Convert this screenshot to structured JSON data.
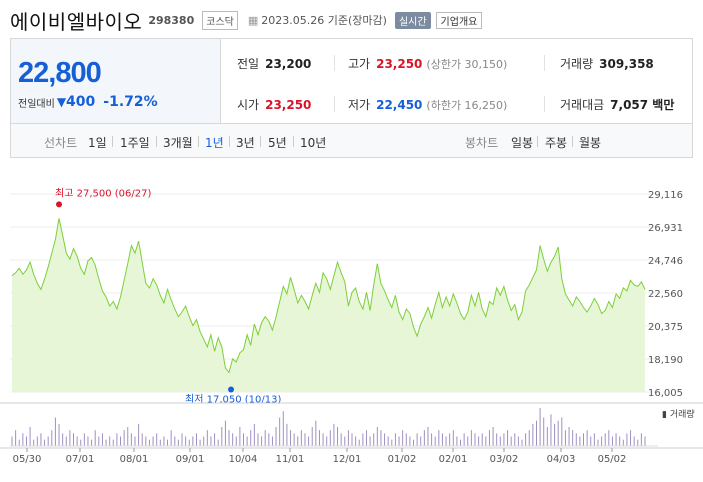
{
  "header": {
    "title": "에이비엘바이오",
    "code": "298380",
    "market": "코스닥",
    "date": "2023.05.26 기준(장마감)",
    "realtime": "실시간",
    "company_btn": "기업개요"
  },
  "price": {
    "current": "22,800",
    "prev_label": "전일대비",
    "change": "400",
    "change_pct": "-1.72%"
  },
  "stats": {
    "prev_close_label": "전일",
    "prev_close": "23,200",
    "high_label": "고가",
    "high": "23,250",
    "upper_limit": "(상한가 30,150)",
    "volume_label": "거래량",
    "volume": "309,358",
    "open_label": "시가",
    "open": "23,250",
    "low_label": "저가",
    "low": "22,450",
    "lower_limit": "(하한가 16,250)",
    "amount_label": "거래대금",
    "amount": "7,057 백만"
  },
  "tabs": {
    "line_label": "선차트",
    "line_tabs": [
      "1일",
      "1주일",
      "3개월",
      "1년",
      "3년",
      "5년",
      "10년"
    ],
    "active_index": 3,
    "candle_label": "봉차트",
    "candle_tabs": [
      "일봉",
      "주봉",
      "월봉"
    ]
  },
  "colors": {
    "up": "#d8142a",
    "down": "#1660d6",
    "line": "#7dcf3a",
    "fill": "#e6f6d6",
    "volume": "#a08fc2"
  },
  "chart_data": {
    "type": "area",
    "y_ticks": [
      "29,116",
      "26,931",
      "24,746",
      "22,560",
      "20,375",
      "18,190",
      "16,005"
    ],
    "ylim": [
      16005,
      29116
    ],
    "x_ticks": [
      "05/30",
      "07/01",
      "08/01",
      "09/01",
      "10/04",
      "11/01",
      "12/01",
      "01/02",
      "02/01",
      "03/02",
      "04/03",
      "05/02"
    ],
    "max_label": "최고 27,500 (06/27)",
    "min_label": "최저 17,050 (10/13)",
    "volume_label": "거래량",
    "values": [
      23700,
      23900,
      24200,
      23800,
      24100,
      24600,
      23800,
      23200,
      22800,
      23500,
      24300,
      25200,
      26100,
      27500,
      26400,
      25200,
      24800,
      25500,
      25000,
      24200,
      23800,
      24700,
      24900,
      24400,
      23500,
      22700,
      22300,
      21700,
      22000,
      21500,
      22300,
      23400,
      24500,
      25700,
      25200,
      26000,
      24600,
      23200,
      22900,
      23500,
      23100,
      22400,
      21900,
      22800,
      22100,
      21500,
      21000,
      21300,
      21700,
      21000,
      20400,
      20800,
      20000,
      19500,
      19000,
      19800,
      18700,
      19600,
      19000,
      17600,
      17300,
      18200,
      18000,
      18600,
      18800,
      19800,
      19100,
      20500,
      19800,
      20600,
      21000,
      20700,
      20100,
      21000,
      22000,
      23000,
      22500,
      23600,
      22800,
      21900,
      22400,
      22000,
      21500,
      22400,
      23200,
      22600,
      23900,
      23500,
      22800,
      23700,
      24600,
      23900,
      23300,
      21700,
      22600,
      22900,
      22000,
      21500,
      22600,
      21400,
      23100,
      24500,
      23200,
      22700,
      22100,
      21600,
      22400,
      21300,
      20800,
      21500,
      21200,
      20300,
      19700,
      20500,
      21000,
      21600,
      20900,
      21800,
      22600,
      21600,
      22300,
      21700,
      22500,
      21900,
      21200,
      20800,
      21300,
      22400,
      21700,
      22600,
      21500,
      21000,
      22000,
      21800,
      22900,
      22400,
      23000,
      22100,
      21400,
      21800,
      20800,
      21300,
      22700,
      23100,
      23600,
      24100,
      25700,
      24800,
      24000,
      24600,
      25000,
      25600,
      23500,
      22500,
      22100,
      21700,
      22300,
      22000,
      21600,
      21300,
      21700,
      22200,
      21800,
      21200,
      21400,
      22000,
      21600,
      22500,
      22200,
      22900,
      22700,
      23400,
      23100,
      23000,
      23300,
      22800
    ],
    "volume": [
      3,
      5,
      2,
      4,
      3,
      6,
      2,
      3,
      4,
      2,
      3,
      5,
      9,
      7,
      4,
      3,
      5,
      4,
      3,
      2,
      4,
      3,
      2,
      5,
      3,
      4,
      2,
      3,
      2,
      4,
      3,
      5,
      6,
      4,
      3,
      7,
      4,
      3,
      2,
      3,
      4,
      2,
      3,
      2,
      5,
      3,
      2,
      4,
      3,
      2,
      3,
      4,
      2,
      3,
      5,
      3,
      4,
      2,
      6,
      8,
      5,
      4,
      3,
      6,
      4,
      3,
      5,
      7,
      4,
      3,
      5,
      4,
      3,
      6,
      9,
      11,
      7,
      5,
      4,
      3,
      5,
      4,
      3,
      6,
      8,
      5,
      4,
      3,
      5,
      7,
      6,
      4,
      3,
      5,
      4,
      3,
      2,
      4,
      5,
      3,
      4,
      6,
      5,
      4,
      3,
      2,
      4,
      3,
      5,
      4,
      3,
      2,
      4,
      3,
      5,
      6,
      4,
      3,
      5,
      4,
      3,
      4,
      5,
      3,
      2,
      4,
      3,
      5,
      4,
      3,
      4,
      3,
      5,
      6,
      4,
      3,
      4,
      5,
      3,
      4,
      3,
      2,
      4,
      5,
      7,
      8,
      12,
      9,
      6,
      10,
      7,
      8,
      9,
      5,
      6,
      5,
      4,
      3,
      4,
      5,
      3,
      4,
      2,
      3,
      4,
      5,
      3,
      4,
      3,
      2,
      4,
      5,
      3,
      2,
      4,
      3
    ]
  }
}
